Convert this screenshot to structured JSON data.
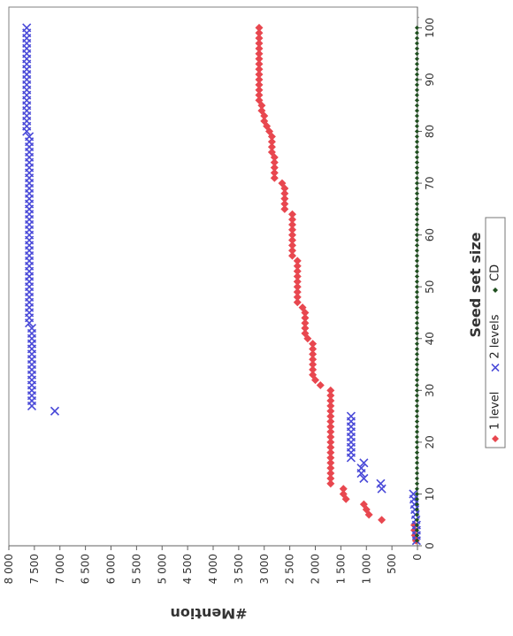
{
  "chart_data": {
    "type": "scatter",
    "orientation": "rotated-90-clockwise",
    "xlabel": "Seed set size",
    "ylabel": "#Mention",
    "xlim": [
      0,
      104
    ],
    "ylim": [
      0,
      8000
    ],
    "x_ticks": [
      0,
      10,
      20,
      30,
      40,
      50,
      60,
      70,
      80,
      90,
      100
    ],
    "x_tick_labels": [
      "0",
      "10",
      "20",
      "30",
      "40",
      "50",
      "60",
      "70",
      "80",
      "90",
      "100"
    ],
    "y_ticks": [
      0,
      500,
      1000,
      1500,
      2000,
      2500,
      3000,
      3500,
      4000,
      4500,
      5000,
      5500,
      6000,
      6500,
      7000,
      7500,
      8000
    ],
    "y_tick_labels": [
      "0",
      "500",
      "1 000",
      "1 500",
      "2 000",
      "2 500",
      "3 000",
      "3 500",
      "4 000",
      "4 500",
      "5 000",
      "5 500",
      "6 000",
      "6 500",
      "7 000",
      "7 500",
      "8 000"
    ],
    "grid": false,
    "legend_position": "bottom",
    "series": [
      {
        "name": "1 level",
        "marker": "diamond",
        "color": "#e8474f",
        "x": [
          1,
          2,
          3,
          4,
          5,
          6,
          7,
          8,
          9,
          10,
          11,
          12,
          13,
          14,
          15,
          16,
          17,
          18,
          19,
          20,
          21,
          22,
          23,
          24,
          25,
          26,
          27,
          28,
          29,
          30,
          31,
          32,
          33,
          34,
          35,
          36,
          37,
          38,
          39,
          40,
          41,
          42,
          43,
          44,
          45,
          46,
          47,
          48,
          49,
          50,
          51,
          52,
          53,
          54,
          55,
          56,
          57,
          58,
          59,
          60,
          61,
          62,
          63,
          64,
          65,
          66,
          67,
          68,
          69,
          70,
          71,
          72,
          73,
          74,
          75,
          76,
          77,
          78,
          79,
          80,
          81,
          82,
          83,
          84,
          85,
          86,
          87,
          88,
          89,
          90,
          91,
          92,
          93,
          94,
          95,
          96,
          97,
          98,
          99,
          100
        ],
        "y": [
          30,
          50,
          60,
          60,
          700,
          950,
          1000,
          1050,
          1400,
          1450,
          1450,
          1700,
          1700,
          1700,
          1700,
          1700,
          1700,
          1700,
          1700,
          1700,
          1700,
          1700,
          1700,
          1700,
          1700,
          1700,
          1700,
          1700,
          1700,
          1700,
          1900,
          2000,
          2050,
          2050,
          2050,
          2050,
          2050,
          2050,
          2050,
          2150,
          2200,
          2200,
          2200,
          2200,
          2200,
          2250,
          2350,
          2350,
          2350,
          2350,
          2350,
          2350,
          2350,
          2350,
          2350,
          2450,
          2450,
          2450,
          2450,
          2450,
          2450,
          2450,
          2450,
          2450,
          2600,
          2600,
          2600,
          2600,
          2600,
          2650,
          2800,
          2800,
          2800,
          2800,
          2800,
          2850,
          2850,
          2850,
          2850,
          2900,
          2950,
          3000,
          3000,
          3050,
          3050,
          3100,
          3100,
          3100,
          3100,
          3100,
          3100,
          3100,
          3100,
          3100,
          3100,
          3100,
          3100,
          3100,
          3100,
          3100
        ]
      },
      {
        "name": "2 levels",
        "marker": "x",
        "color": "#4a4ad8",
        "x": [
          1,
          2,
          3,
          4,
          5,
          6,
          7,
          8,
          9,
          10,
          11,
          12,
          13,
          14,
          15,
          16,
          17,
          18,
          19,
          20,
          21,
          22,
          23,
          24,
          25,
          26,
          27,
          28,
          29,
          30,
          31,
          32,
          33,
          34,
          35,
          36,
          37,
          38,
          39,
          40,
          41,
          42,
          43,
          44,
          45,
          46,
          47,
          48,
          49,
          50,
          51,
          52,
          53,
          54,
          55,
          56,
          57,
          58,
          59,
          60,
          61,
          62,
          63,
          64,
          65,
          66,
          67,
          68,
          69,
          70,
          71,
          72,
          73,
          74,
          75,
          76,
          77,
          78,
          79,
          80,
          81,
          82,
          83,
          84,
          85,
          86,
          87,
          88,
          89,
          90,
          91,
          92,
          93,
          94,
          95,
          96,
          97,
          98,
          99,
          100
        ],
        "y": [
          20,
          20,
          20,
          20,
          30,
          40,
          50,
          60,
          70,
          80,
          700,
          720,
          1050,
          1100,
          1100,
          1050,
          1300,
          1300,
          1300,
          1300,
          1300,
          1300,
          1300,
          1300,
          1300,
          7100,
          7550,
          7550,
          7550,
          7550,
          7550,
          7550,
          7550,
          7550,
          7550,
          7550,
          7550,
          7550,
          7550,
          7550,
          7550,
          7550,
          7600,
          7600,
          7600,
          7600,
          7600,
          7600,
          7600,
          7600,
          7600,
          7600,
          7600,
          7600,
          7600,
          7600,
          7600,
          7600,
          7600,
          7600,
          7600,
          7600,
          7600,
          7600,
          7600,
          7600,
          7600,
          7600,
          7600,
          7600,
          7600,
          7600,
          7600,
          7600,
          7600,
          7600,
          7600,
          7600,
          7600,
          7650,
          7650,
          7650,
          7650,
          7650,
          7650,
          7650,
          7650,
          7650,
          7650,
          7650,
          7650,
          7650,
          7650,
          7650,
          7650,
          7650,
          7650,
          7650,
          7650,
          7650
        ]
      },
      {
        "name": "CD",
        "marker": "dot",
        "color": "#1f4f1f",
        "x": [
          1,
          2,
          3,
          4,
          5,
          6,
          7,
          8,
          9,
          10,
          11,
          12,
          13,
          14,
          15,
          16,
          17,
          18,
          19,
          20,
          21,
          22,
          23,
          24,
          25,
          26,
          27,
          28,
          29,
          30,
          31,
          32,
          33,
          34,
          35,
          36,
          37,
          38,
          39,
          40,
          41,
          42,
          43,
          44,
          45,
          46,
          47,
          48,
          49,
          50,
          51,
          52,
          53,
          54,
          55,
          56,
          57,
          58,
          59,
          60,
          61,
          62,
          63,
          64,
          65,
          66,
          67,
          68,
          69,
          70,
          71,
          72,
          73,
          74,
          75,
          76,
          77,
          78,
          79,
          80,
          81,
          82,
          83,
          84,
          85,
          86,
          87,
          88,
          89,
          90,
          91,
          92,
          93,
          94,
          95,
          96,
          97,
          98,
          99,
          100
        ],
        "y": [
          10,
          10,
          10,
          10,
          10,
          10,
          10,
          10,
          10,
          10,
          10,
          10,
          10,
          10,
          10,
          10,
          10,
          10,
          10,
          10,
          10,
          10,
          10,
          10,
          10,
          10,
          10,
          10,
          10,
          10,
          10,
          10,
          10,
          10,
          10,
          10,
          10,
          10,
          10,
          10,
          10,
          10,
          10,
          10,
          10,
          10,
          10,
          10,
          10,
          10,
          10,
          10,
          10,
          10,
          10,
          10,
          10,
          10,
          10,
          10,
          10,
          10,
          10,
          10,
          10,
          10,
          10,
          10,
          10,
          10,
          10,
          10,
          10,
          10,
          10,
          10,
          10,
          10,
          10,
          10,
          10,
          10,
          10,
          10,
          10,
          10,
          10,
          10,
          10,
          10,
          10,
          10,
          10,
          10,
          10,
          10,
          10,
          10,
          10,
          10
        ]
      }
    ]
  }
}
